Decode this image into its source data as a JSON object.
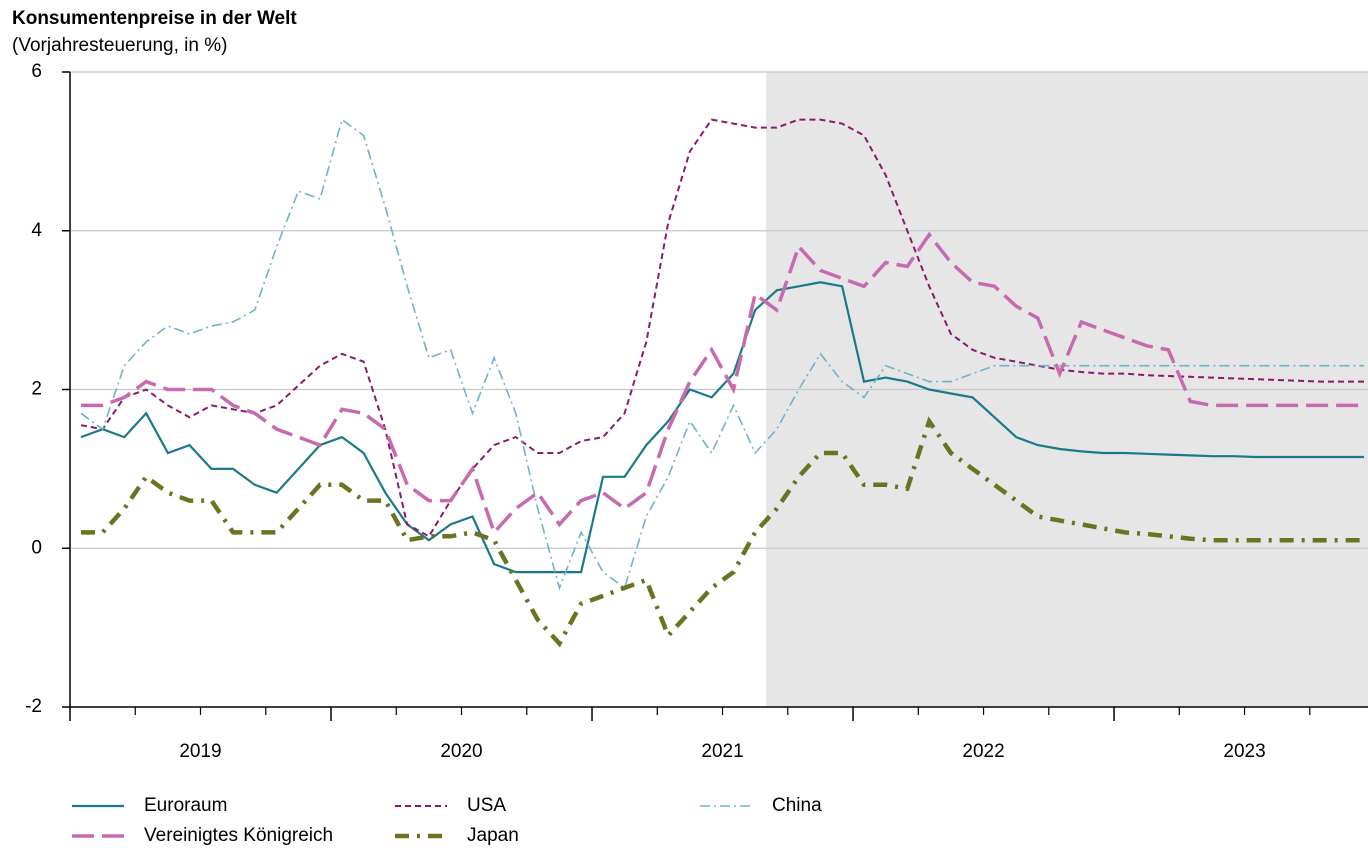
{
  "chart_data": {
    "type": "line",
    "title": "Konsumentenpreise in der Welt",
    "subtitle": "(Vorjahresteuerung, in %)",
    "x": [
      2019.042,
      2019.125,
      2019.208,
      2019.292,
      2019.375,
      2019.458,
      2019.542,
      2019.625,
      2019.708,
      2019.792,
      2019.875,
      2019.958,
      2020.042,
      2020.125,
      2020.208,
      2020.292,
      2020.375,
      2020.458,
      2020.542,
      2020.625,
      2020.708,
      2020.792,
      2020.875,
      2020.958,
      2021.042,
      2021.125,
      2021.208,
      2021.292,
      2021.375,
      2021.458,
      2021.542,
      2021.625,
      2021.708,
      2021.792,
      2021.875,
      2021.958,
      2022.042,
      2022.125,
      2022.208,
      2022.292,
      2022.375,
      2022.458,
      2022.542,
      2022.625,
      2022.708,
      2022.792,
      2022.875,
      2022.958,
      2023.042,
      2023.125,
      2023.208,
      2023.292,
      2023.375,
      2023.458,
      2023.542,
      2023.625,
      2023.708,
      2023.792,
      2023.875,
      2023.958
    ],
    "series": [
      {
        "name": "Euroraum",
        "color": "#1a7a8c",
        "dash": "none",
        "width": 2.2,
        "values": [
          1.4,
          1.5,
          1.4,
          1.7,
          1.2,
          1.3,
          1.0,
          1.0,
          0.8,
          0.7,
          1.0,
          1.3,
          1.4,
          1.2,
          0.7,
          0.3,
          0.1,
          0.3,
          0.4,
          -0.2,
          -0.3,
          -0.3,
          -0.3,
          -0.3,
          0.9,
          0.9,
          1.3,
          1.6,
          2.0,
          1.9,
          2.2,
          3.0,
          3.25,
          3.3,
          3.35,
          3.3,
          2.1,
          2.15,
          2.1,
          2.0,
          1.95,
          1.9,
          1.65,
          1.4,
          1.3,
          1.25,
          1.22,
          1.2,
          1.2,
          1.19,
          1.18,
          1.17,
          1.16,
          1.16,
          1.15,
          1.15,
          1.15,
          1.15,
          1.15,
          1.15
        ]
      },
      {
        "name": "USA",
        "color": "#8b1a6b",
        "dash": "6,4",
        "width": 2,
        "values": [
          1.55,
          1.5,
          1.9,
          2.0,
          1.8,
          1.65,
          1.8,
          1.75,
          1.7,
          1.8,
          2.05,
          2.3,
          2.45,
          2.35,
          1.5,
          0.3,
          0.15,
          0.6,
          1.0,
          1.3,
          1.4,
          1.2,
          1.2,
          1.35,
          1.4,
          1.7,
          2.6,
          4.1,
          5.0,
          5.4,
          5.35,
          5.3,
          5.3,
          5.4,
          5.4,
          5.35,
          5.2,
          4.7,
          4.0,
          3.3,
          2.7,
          2.5,
          2.4,
          2.35,
          2.3,
          2.25,
          2.22,
          2.2,
          2.2,
          2.18,
          2.17,
          2.16,
          2.15,
          2.14,
          2.13,
          2.12,
          2.11,
          2.1,
          2.1,
          2.1
        ]
      },
      {
        "name": "China",
        "color": "#6fb3c8",
        "dash": "10,4,2,4",
        "width": 1.6,
        "values": [
          1.7,
          1.5,
          2.3,
          2.6,
          2.8,
          2.7,
          2.8,
          2.85,
          3.0,
          3.8,
          4.5,
          4.4,
          5.4,
          5.2,
          4.3,
          3.3,
          2.4,
          2.5,
          1.7,
          2.4,
          1.7,
          0.5,
          -0.5,
          0.2,
          -0.3,
          -0.5,
          0.4,
          0.9,
          1.6,
          1.2,
          1.8,
          1.2,
          1.5,
          2.0,
          2.45,
          2.1,
          1.9,
          2.3,
          2.2,
          2.1,
          2.1,
          2.2,
          2.3,
          2.3,
          2.3,
          2.3,
          2.3,
          2.3,
          2.3,
          2.3,
          2.3,
          2.3,
          2.3,
          2.3,
          2.3,
          2.3,
          2.3,
          2.3,
          2.3,
          2.3
        ]
      },
      {
        "name": "Vereinigtes Königreich",
        "color": "#c86ab0",
        "dash": "22,8",
        "width": 3.5,
        "values": [
          1.8,
          1.8,
          1.9,
          2.1,
          2.0,
          2.0,
          2.0,
          1.8,
          1.7,
          1.5,
          1.4,
          1.3,
          1.75,
          1.7,
          1.5,
          0.8,
          0.6,
          0.6,
          1.0,
          0.2,
          0.5,
          0.7,
          0.3,
          0.6,
          0.7,
          0.5,
          0.7,
          1.5,
          2.1,
          2.5,
          2.0,
          3.2,
          3.0,
          3.8,
          3.5,
          3.4,
          3.3,
          3.6,
          3.55,
          3.95,
          3.6,
          3.35,
          3.3,
          3.05,
          2.9,
          2.2,
          2.85,
          2.75,
          2.65,
          2.55,
          2.5,
          1.85,
          1.8,
          1.8,
          1.8,
          1.8,
          1.8,
          1.8,
          1.8,
          1.8
        ]
      },
      {
        "name": "Japan",
        "color": "#6b7320",
        "dash": "14,8,3,8",
        "width": 4.5,
        "values": [
          0.2,
          0.2,
          0.5,
          0.9,
          0.7,
          0.6,
          0.6,
          0.2,
          0.2,
          0.2,
          0.5,
          0.8,
          0.8,
          0.6,
          0.6,
          0.1,
          0.15,
          0.15,
          0.2,
          0.1,
          -0.4,
          -0.9,
          -1.2,
          -0.7,
          -0.6,
          -0.5,
          -0.4,
          -1.1,
          -0.8,
          -0.5,
          -0.3,
          0.2,
          0.5,
          0.9,
          1.2,
          1.2,
          0.8,
          0.8,
          0.75,
          1.6,
          1.2,
          1.0,
          0.8,
          0.6,
          0.4,
          0.35,
          0.3,
          0.25,
          0.2,
          0.18,
          0.15,
          0.12,
          0.1,
          0.1,
          0.1,
          0.1,
          0.1,
          0.1,
          0.1,
          0.1
        ]
      }
    ],
    "xlim": [
      2019,
      2023.973
    ],
    "ylim": [
      -2,
      6
    ],
    "yticks": [
      -2,
      0,
      2,
      4,
      6
    ],
    "grid": true,
    "xticks": [
      {
        "value": 2019.5,
        "label": "2019"
      },
      {
        "value": 2020.5,
        "label": "2020"
      },
      {
        "value": 2021.5,
        "label": "2021"
      },
      {
        "value": 2022.5,
        "label": "2022"
      },
      {
        "value": 2023.5,
        "label": "2023"
      }
    ],
    "xticks_major": [
      2019,
      2020,
      2021,
      2022,
      2023
    ],
    "xticks_minor": [
      2019.25,
      2019.5,
      2019.75,
      2020.25,
      2020.5,
      2020.75,
      2021.25,
      2021.5,
      2021.75,
      2022.25,
      2022.5,
      2022.75,
      2023.25,
      2023.5,
      2023.75
    ],
    "shade_from": 2021.667,
    "shade_color": "#e6e6e6"
  }
}
